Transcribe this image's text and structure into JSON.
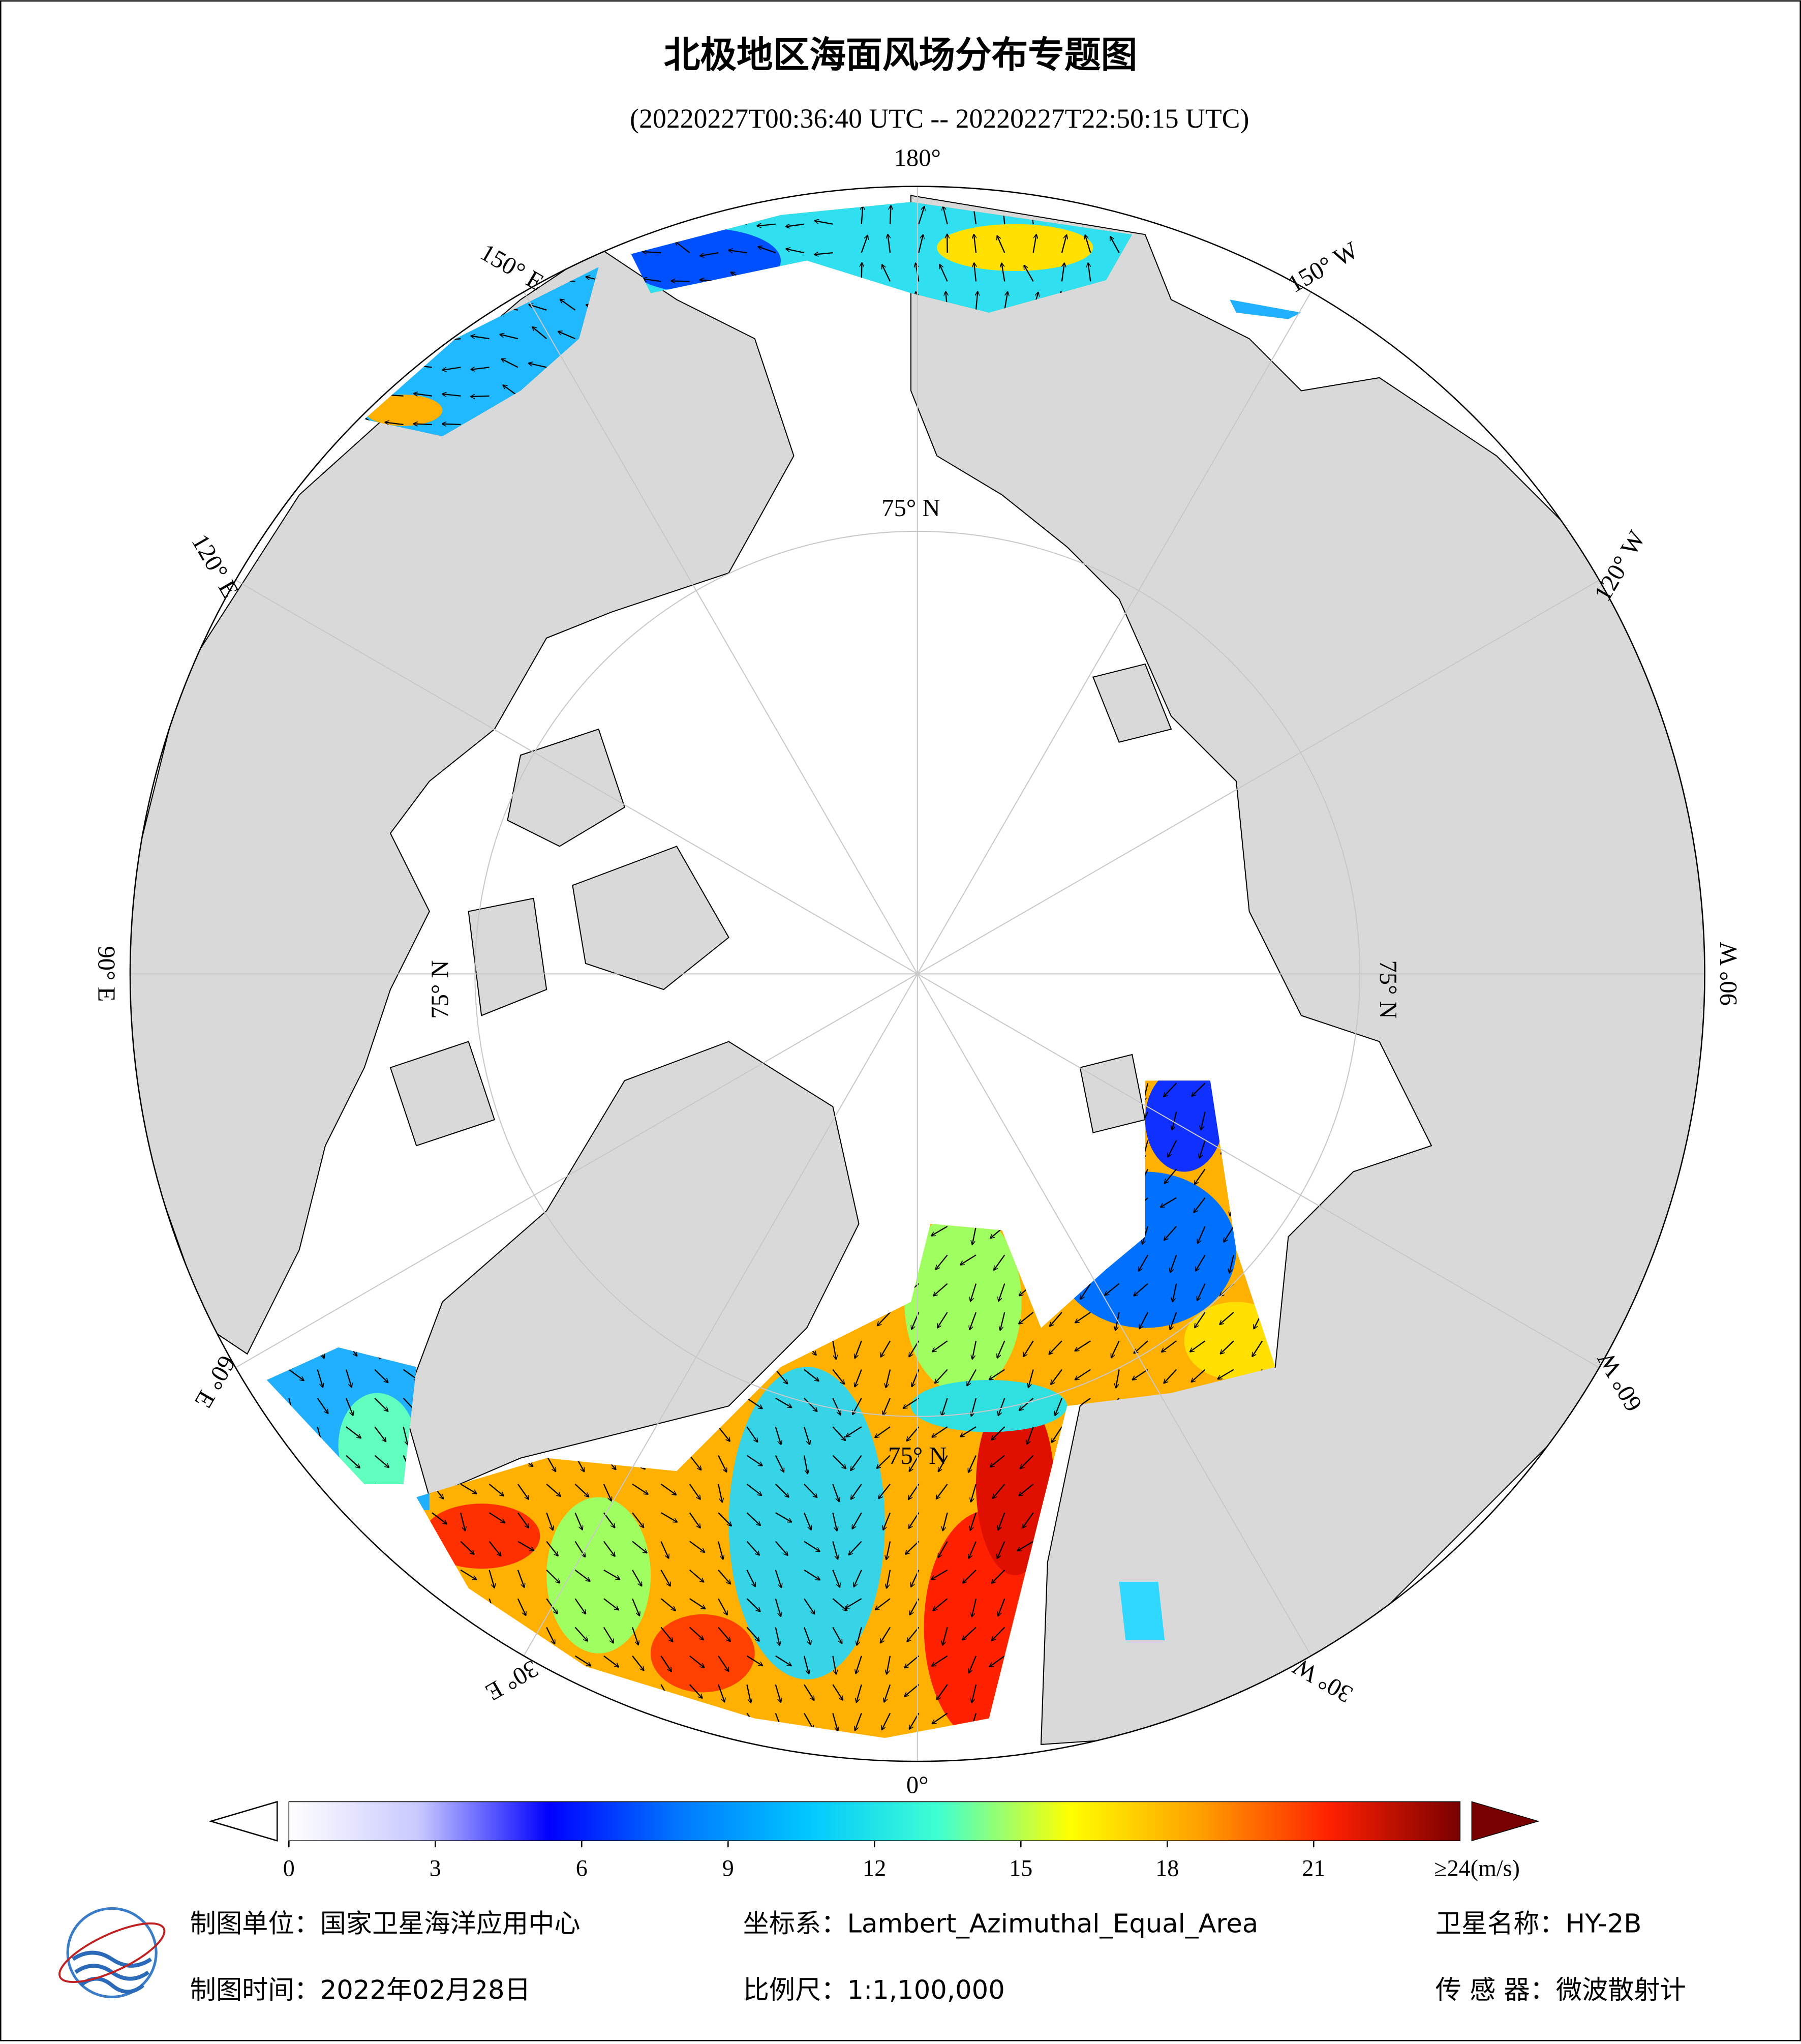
{
  "title": "北极地区海面风场分布专题图",
  "subtitle": "(20220227T00:36:40 UTC -- 20220227T22:50:15 UTC)",
  "map": {
    "longitude_labels": [
      "180°",
      "150° W",
      "120° W",
      "90° W",
      "60° W",
      "30° W",
      "0°",
      "30° E",
      "60° E",
      "90° E",
      "120° E",
      "150° E"
    ],
    "latitude_labels": [
      "75° N",
      "75° N",
      "75° N",
      "75° N"
    ],
    "land_color": "#d9d9d9"
  },
  "colorbar": {
    "range": [
      0,
      24
    ],
    "ticks": [
      0,
      3,
      6,
      9,
      12,
      15,
      18,
      21
    ],
    "max_label": "≥24(m/s)",
    "colors": [
      "#ffffff",
      "#c8c8ff",
      "#0000ff",
      "#0078ff",
      "#00c8ff",
      "#40ffd0",
      "#ffff00",
      "#ffa000",
      "#ff2000",
      "#780000"
    ]
  },
  "footer": {
    "unit": "制图单位：国家卫星海洋应用中心",
    "coords": "坐标系：Lambert_Azimuthal_Equal_Area",
    "satellite": "卫星名称：HY-2B",
    "date": "制图时间：2022年02月28日",
    "scale": "比例尺：1:1,100,000",
    "sensor": "传 感 器：微波散射计"
  }
}
